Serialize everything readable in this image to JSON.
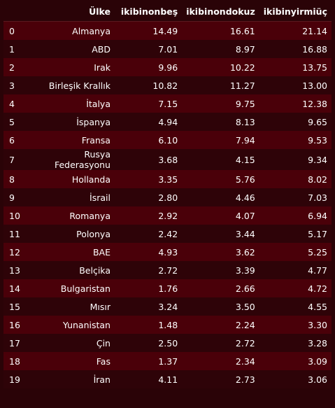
{
  "table": {
    "columns": [
      "",
      "Ülke",
      "ikibinonbeş",
      "ikibinondokuz",
      "ikibinyirmiüç"
    ],
    "rows": [
      [
        "0",
        "Almanya",
        "14.49",
        "16.61",
        "21.14"
      ],
      [
        "1",
        "ABD",
        "7.01",
        "8.97",
        "16.88"
      ],
      [
        "2",
        "Irak",
        "9.96",
        "10.22",
        "13.75"
      ],
      [
        "3",
        "Birleşik Krallık",
        "10.82",
        "11.27",
        "13.00"
      ],
      [
        "4",
        "İtalya",
        "7.15",
        "9.75",
        "12.38"
      ],
      [
        "5",
        "İspanya",
        "4.94",
        "8.13",
        "9.65"
      ],
      [
        "6",
        "Fransa",
        "6.10",
        "7.94",
        "9.53"
      ],
      [
        "7",
        "Rusya Federasyonu",
        "3.68",
        "4.15",
        "9.34"
      ],
      [
        "8",
        "Hollanda",
        "3.35",
        "5.76",
        "8.02"
      ],
      [
        "9",
        "İsrail",
        "2.80",
        "4.46",
        "7.03"
      ],
      [
        "10",
        "Romanya",
        "2.92",
        "4.07",
        "6.94"
      ],
      [
        "11",
        "Polonya",
        "2.42",
        "3.44",
        "5.17"
      ],
      [
        "12",
        "BAE",
        "4.93",
        "3.62",
        "5.25"
      ],
      [
        "13",
        "Belçika",
        "2.72",
        "3.39",
        "4.77"
      ],
      [
        "14",
        "Bulgaristan",
        "1.76",
        "2.66",
        "4.72"
      ],
      [
        "15",
        "Mısır",
        "3.24",
        "3.50",
        "4.55"
      ],
      [
        "16",
        "Yunanistan",
        "1.48",
        "2.24",
        "3.30"
      ],
      [
        "17",
        "Çin",
        "2.50",
        "2.72",
        "3.28"
      ],
      [
        "18",
        "Fas",
        "1.37",
        "2.34",
        "3.09"
      ],
      [
        "19",
        "İran",
        "4.11",
        "2.73",
        "3.06"
      ]
    ]
  },
  "colors": {
    "background": "#2a0307",
    "row_odd": "#4a0009",
    "row_even": "#2e0308",
    "text": "#ffffff"
  }
}
